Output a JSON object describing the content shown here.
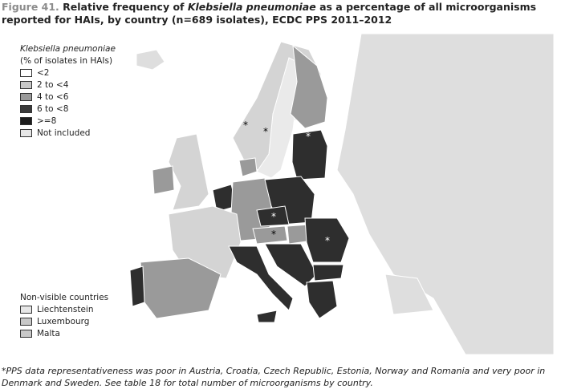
{
  "title": {
    "figure_label": "Figure 41.",
    "prefix": "Relative frequency of ",
    "species": "Klebsiella pneumoniae",
    "suffix": " as a percentage of all microorganisms reported for HAIs, by country (n=689 isolates), ECDC PPS 2011–2012"
  },
  "legend": {
    "title_species": "Klebsiella pneumoniae",
    "title_unit": "(% of isolates in HAIs)",
    "items": [
      "<2",
      "2 to <4",
      "4 to <6",
      "6 to <8",
      ">=8",
      "Not included"
    ]
  },
  "non_visible": {
    "title": "Non-visible countries",
    "items": [
      "Liechtenstein",
      "Luxembourg",
      "Malta"
    ]
  },
  "map": {
    "asterisks": [
      "*",
      "*",
      "*",
      "*",
      "*",
      "*"
    ]
  },
  "footnote": "*PPS data representativeness was poor in Austria, Croatia, Czech Republic, Estonia, Norway and Romania and very poor in Denmark and Sweden. See table 18 for total number of microorganisms by country."
}
